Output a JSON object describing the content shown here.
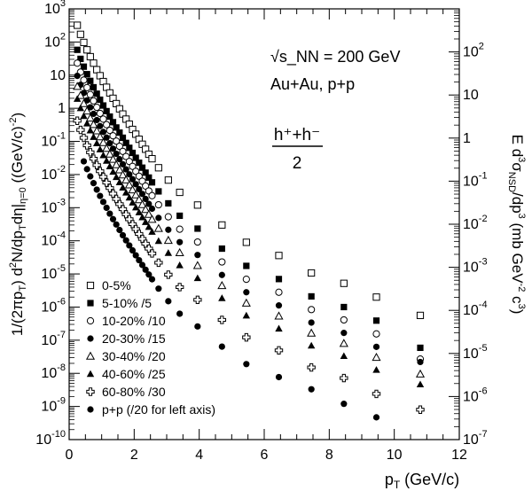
{
  "chart_data": {
    "type": "scatter",
    "title": "",
    "xlabel": "p",
    "xlabel_sub": "T",
    "xlabel_unit": "(GeV/c)",
    "ylabel_left_text": "1/(2πp_T) d²N/dp_T dη|_η=0 ((GeV/c)⁻²)",
    "ylabel_right_text": "E d³σ_NSD/dp³ (mb GeV⁻² c³)",
    "xlim": [
      0,
      12
    ],
    "ylim_left_log10": [
      -10,
      3
    ],
    "ylim_right_log10": [
      -7,
      3
    ],
    "x_ticks": [
      "0",
      "2",
      "4",
      "6",
      "8",
      "10",
      "12"
    ],
    "annotations": {
      "energy": "√s_NN = 200 GeV",
      "systems": "Au+Au, p+p",
      "species_numerator": "h⁺+h⁻",
      "species_denominator": "2"
    },
    "legend_position": "bottom-left",
    "series": [
      {
        "name": "0-5%",
        "marker": "open-square",
        "x": [
          0.25,
          0.35,
          0.45,
          0.55,
          0.65,
          0.75,
          0.85,
          0.95,
          1.05,
          1.15,
          1.25,
          1.35,
          1.45,
          1.55,
          1.65,
          1.75,
          1.85,
          1.95,
          2.05,
          2.15,
          2.25,
          2.35,
          2.45,
          2.55,
          2.75,
          3.05,
          3.4,
          3.95,
          4.7,
          5.45,
          6.45,
          7.45,
          8.45,
          9.45,
          10.8
        ],
        "y": [
          320,
          170,
          97,
          58,
          36,
          23,
          14.6,
          9.6,
          6.4,
          4.3,
          2.9,
          2.0,
          1.38,
          0.96,
          0.67,
          0.47,
          0.33,
          0.23,
          0.165,
          0.116,
          0.082,
          0.058,
          0.041,
          0.03,
          0.016,
          0.0068,
          0.0029,
          0.0012,
          0.0003,
          9e-05,
          3.6e-05,
          1.07e-05,
          5.2e-06,
          2e-06,
          5.6e-07
        ]
      },
      {
        "name": "5-10% /5",
        "marker": "filled-square",
        "x": [
          0.25,
          0.35,
          0.45,
          0.55,
          0.65,
          0.75,
          0.85,
          0.95,
          1.05,
          1.15,
          1.25,
          1.35,
          1.45,
          1.55,
          1.65,
          1.75,
          1.85,
          1.95,
          2.05,
          2.15,
          2.25,
          2.35,
          2.45,
          2.55,
          2.75,
          3.05,
          3.4,
          3.95,
          4.7,
          5.45,
          6.45,
          7.45,
          8.45,
          9.45,
          10.8
        ],
        "y": [
          58,
          31,
          18,
          10.7,
          6.7,
          4.3,
          2.75,
          1.81,
          1.21,
          0.82,
          0.56,
          0.38,
          0.263,
          0.184,
          0.129,
          0.09,
          0.064,
          0.045,
          0.032,
          0.0227,
          0.0161,
          0.0114,
          0.0081,
          0.0058,
          0.0031,
          0.00135,
          0.00057,
          0.000233,
          5.8e-05,
          1.75e-05,
          7e-06,
          2.1e-06,
          1e-06,
          3.9e-07,
          5.9e-08
        ]
      },
      {
        "name": "10-20% /10",
        "marker": "open-circle",
        "x": [
          0.25,
          0.35,
          0.45,
          0.55,
          0.65,
          0.75,
          0.85,
          0.95,
          1.05,
          1.15,
          1.25,
          1.35,
          1.45,
          1.55,
          1.65,
          1.75,
          1.85,
          1.95,
          2.05,
          2.15,
          2.25,
          2.35,
          2.45,
          2.55,
          2.75,
          3.05,
          3.4,
          3.95,
          4.7,
          5.45,
          6.45,
          7.45,
          8.45,
          9.45,
          10.8
        ],
        "y": [
          23,
          12.3,
          7.1,
          4.2,
          2.6,
          1.67,
          1.07,
          0.7,
          0.47,
          0.32,
          0.215,
          0.148,
          0.102,
          0.071,
          0.05,
          0.035,
          0.0248,
          0.0176,
          0.0125,
          0.0089,
          0.0063,
          0.0045,
          0.0032,
          0.0023,
          0.00122,
          0.00053,
          0.000224,
          9.2e-05,
          2.3e-05,
          6.9e-06,
          2.8e-06,
          8.4e-07,
          4.1e-07,
          1.55e-07,
          2.7e-08
        ]
      },
      {
        "name": "20-30% /15",
        "marker": "filled-circle",
        "x": [
          0.25,
          0.35,
          0.45,
          0.55,
          0.65,
          0.75,
          0.85,
          0.95,
          1.05,
          1.15,
          1.25,
          1.35,
          1.45,
          1.55,
          1.65,
          1.75,
          1.85,
          1.95,
          2.05,
          2.15,
          2.25,
          2.35,
          2.45,
          2.55,
          2.75,
          3.05,
          3.4,
          3.95,
          4.7,
          5.45,
          6.45,
          7.45,
          8.45,
          9.45,
          10.8
        ],
        "y": [
          9.5,
          5.1,
          2.9,
          1.73,
          1.07,
          0.68,
          0.44,
          0.29,
          0.193,
          0.13,
          0.088,
          0.06,
          0.042,
          0.029,
          0.0204,
          0.0143,
          0.0101,
          0.0072,
          0.0051,
          0.0036,
          0.0026,
          0.00183,
          0.0013,
          0.00093,
          0.00049,
          0.000215,
          9.1e-05,
          3.73e-05,
          9.3e-06,
          2.8e-06,
          1.12e-06,
          3.4e-07,
          1.66e-07,
          6.3e-08,
          2.2e-08
        ]
      },
      {
        "name": "30-40% /20",
        "marker": "open-triangle",
        "x": [
          0.25,
          0.35,
          0.45,
          0.55,
          0.65,
          0.75,
          0.85,
          0.95,
          1.05,
          1.15,
          1.25,
          1.35,
          1.45,
          1.55,
          1.65,
          1.75,
          1.85,
          1.95,
          2.05,
          2.15,
          2.25,
          2.35,
          2.45,
          2.55,
          2.75,
          3.05,
          3.4,
          3.95,
          4.7,
          5.45,
          6.45,
          7.45,
          8.45,
          9.45,
          10.8
        ],
        "y": [
          4.5,
          2.4,
          1.37,
          0.82,
          0.5,
          0.32,
          0.206,
          0.136,
          0.091,
          0.061,
          0.041,
          0.0284,
          0.0196,
          0.0137,
          0.0096,
          0.0068,
          0.0048,
          0.0034,
          0.0024,
          0.00172,
          0.00122,
          0.00087,
          0.00062,
          0.00044,
          0.000233,
          0.000102,
          4.32e-05,
          1.77e-05,
          4.4e-06,
          1.3e-06,
          5.3e-07,
          1.62e-07,
          7.9e-08,
          3e-08,
          9.4e-09
        ]
      },
      {
        "name": "40-60% /25",
        "marker": "filled-triangle",
        "x": [
          0.25,
          0.35,
          0.45,
          0.55,
          0.65,
          0.75,
          0.85,
          0.95,
          1.05,
          1.15,
          1.25,
          1.35,
          1.45,
          1.55,
          1.65,
          1.75,
          1.85,
          1.95,
          2.05,
          2.15,
          2.25,
          2.35,
          2.45,
          2.55,
          2.75,
          3.05,
          3.4,
          3.95,
          4.7,
          5.45,
          6.45,
          7.45,
          8.45,
          9.45,
          10.8
        ],
        "y": [
          1.9,
          1.0,
          0.58,
          0.345,
          0.212,
          0.135,
          0.087,
          0.057,
          0.038,
          0.0258,
          0.0175,
          0.012,
          0.0083,
          0.0058,
          0.004,
          0.00283,
          0.002,
          0.00142,
          0.00101,
          0.00072,
          0.00051,
          0.000365,
          0.00026,
          0.000186,
          9.78e-05,
          4.27e-05,
          1.81e-05,
          7.4e-06,
          1.84e-06,
          5.5e-07,
          2.22e-07,
          6.8e-08,
          3.3e-08,
          1.26e-08,
          4.6e-09
        ]
      },
      {
        "name": "60-80% /30",
        "marker": "open-cross",
        "x": [
          0.25,
          0.35,
          0.45,
          0.55,
          0.65,
          0.75,
          0.85,
          0.95,
          1.05,
          1.15,
          1.25,
          1.35,
          1.45,
          1.55,
          1.65,
          1.75,
          1.85,
          1.95,
          2.05,
          2.15,
          2.25,
          2.35,
          2.45,
          2.55,
          2.75,
          3.05,
          3.4,
          3.95,
          4.7,
          5.45,
          6.45,
          7.45,
          8.45,
          9.45,
          10.8
        ],
        "y": [
          0.42,
          0.222,
          0.128,
          0.076,
          0.047,
          0.03,
          0.0192,
          0.0126,
          0.0085,
          0.0057,
          0.0039,
          0.00265,
          0.00183,
          0.00128,
          0.0009,
          0.00063,
          0.000447,
          0.000317,
          0.000226,
          0.000161,
          0.000114,
          8.15e-05,
          5.8e-05,
          4.15e-05,
          2.18e-05,
          9.5e-06,
          4e-06,
          1.65e-06,
          4.1e-07,
          1.22e-07,
          4.93e-08,
          1.51e-08,
          7.2e-09,
          2.4e-09,
          8e-10
        ]
      },
      {
        "name": "p+p (/20 for left axis)",
        "marker": "filled-circle",
        "x": [
          0.45,
          0.55,
          0.65,
          0.75,
          0.85,
          0.95,
          1.05,
          1.15,
          1.25,
          1.35,
          1.45,
          1.55,
          1.65,
          1.75,
          1.85,
          1.95,
          2.05,
          2.15,
          2.25,
          2.35,
          2.45,
          2.55,
          2.75,
          3.05,
          3.4,
          3.95,
          4.7,
          5.45,
          6.45,
          7.45,
          8.45,
          9.45
        ],
        "y": [
          0.025,
          0.0145,
          0.0088,
          0.0055,
          0.0035,
          0.00226,
          0.00149,
          0.00099,
          0.00066,
          0.00045,
          0.00031,
          0.000212,
          0.000147,
          0.000103,
          7.25e-05,
          5.13e-05,
          3.65e-05,
          2.6e-05,
          1.86e-05,
          1.34e-05,
          9.6e-06,
          6.9e-06,
          3.6e-06,
          1.5e-06,
          6.3e-07,
          2.6e-07,
          6.4e-08,
          1.9e-08,
          7.7e-09,
          3.3e-09,
          1.2e-09,
          4.7e-10
        ]
      }
    ]
  }
}
